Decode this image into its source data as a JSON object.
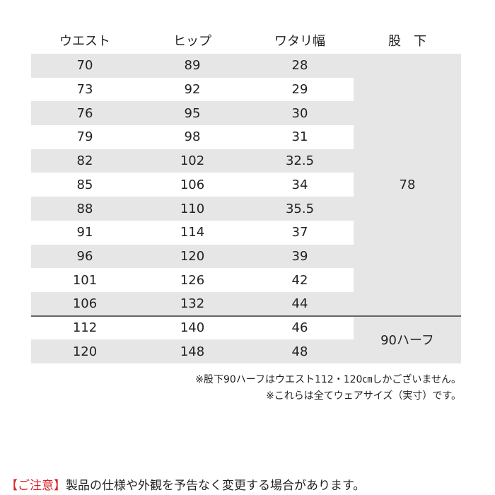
{
  "table": {
    "columns": [
      "ウエスト",
      "ヒップ",
      "ワタリ幅",
      "股　下"
    ],
    "groups": [
      {
        "inseam": "78",
        "rows": [
          [
            70,
            89,
            28
          ],
          [
            73,
            92,
            29
          ],
          [
            76,
            95,
            30
          ],
          [
            79,
            98,
            31
          ],
          [
            82,
            102,
            32.5
          ],
          [
            85,
            106,
            34
          ],
          [
            88,
            110,
            35.5
          ],
          [
            91,
            114,
            37
          ],
          [
            96,
            120,
            39
          ],
          [
            101,
            126,
            42
          ],
          [
            106,
            132,
            44
          ]
        ]
      },
      {
        "inseam": "90ハーフ",
        "rows": [
          [
            112,
            140,
            46
          ],
          [
            120,
            148,
            48
          ]
        ]
      }
    ]
  },
  "notes": [
    "※股下90ハーフはウエスト112・120㎝しかございません。",
    "※これらは全てウェアサイズ（実寸）です。"
  ],
  "footer": {
    "label": "【ご注意】",
    "text": "製品の仕様や外観を予告なく変更する場合があります。"
  }
}
